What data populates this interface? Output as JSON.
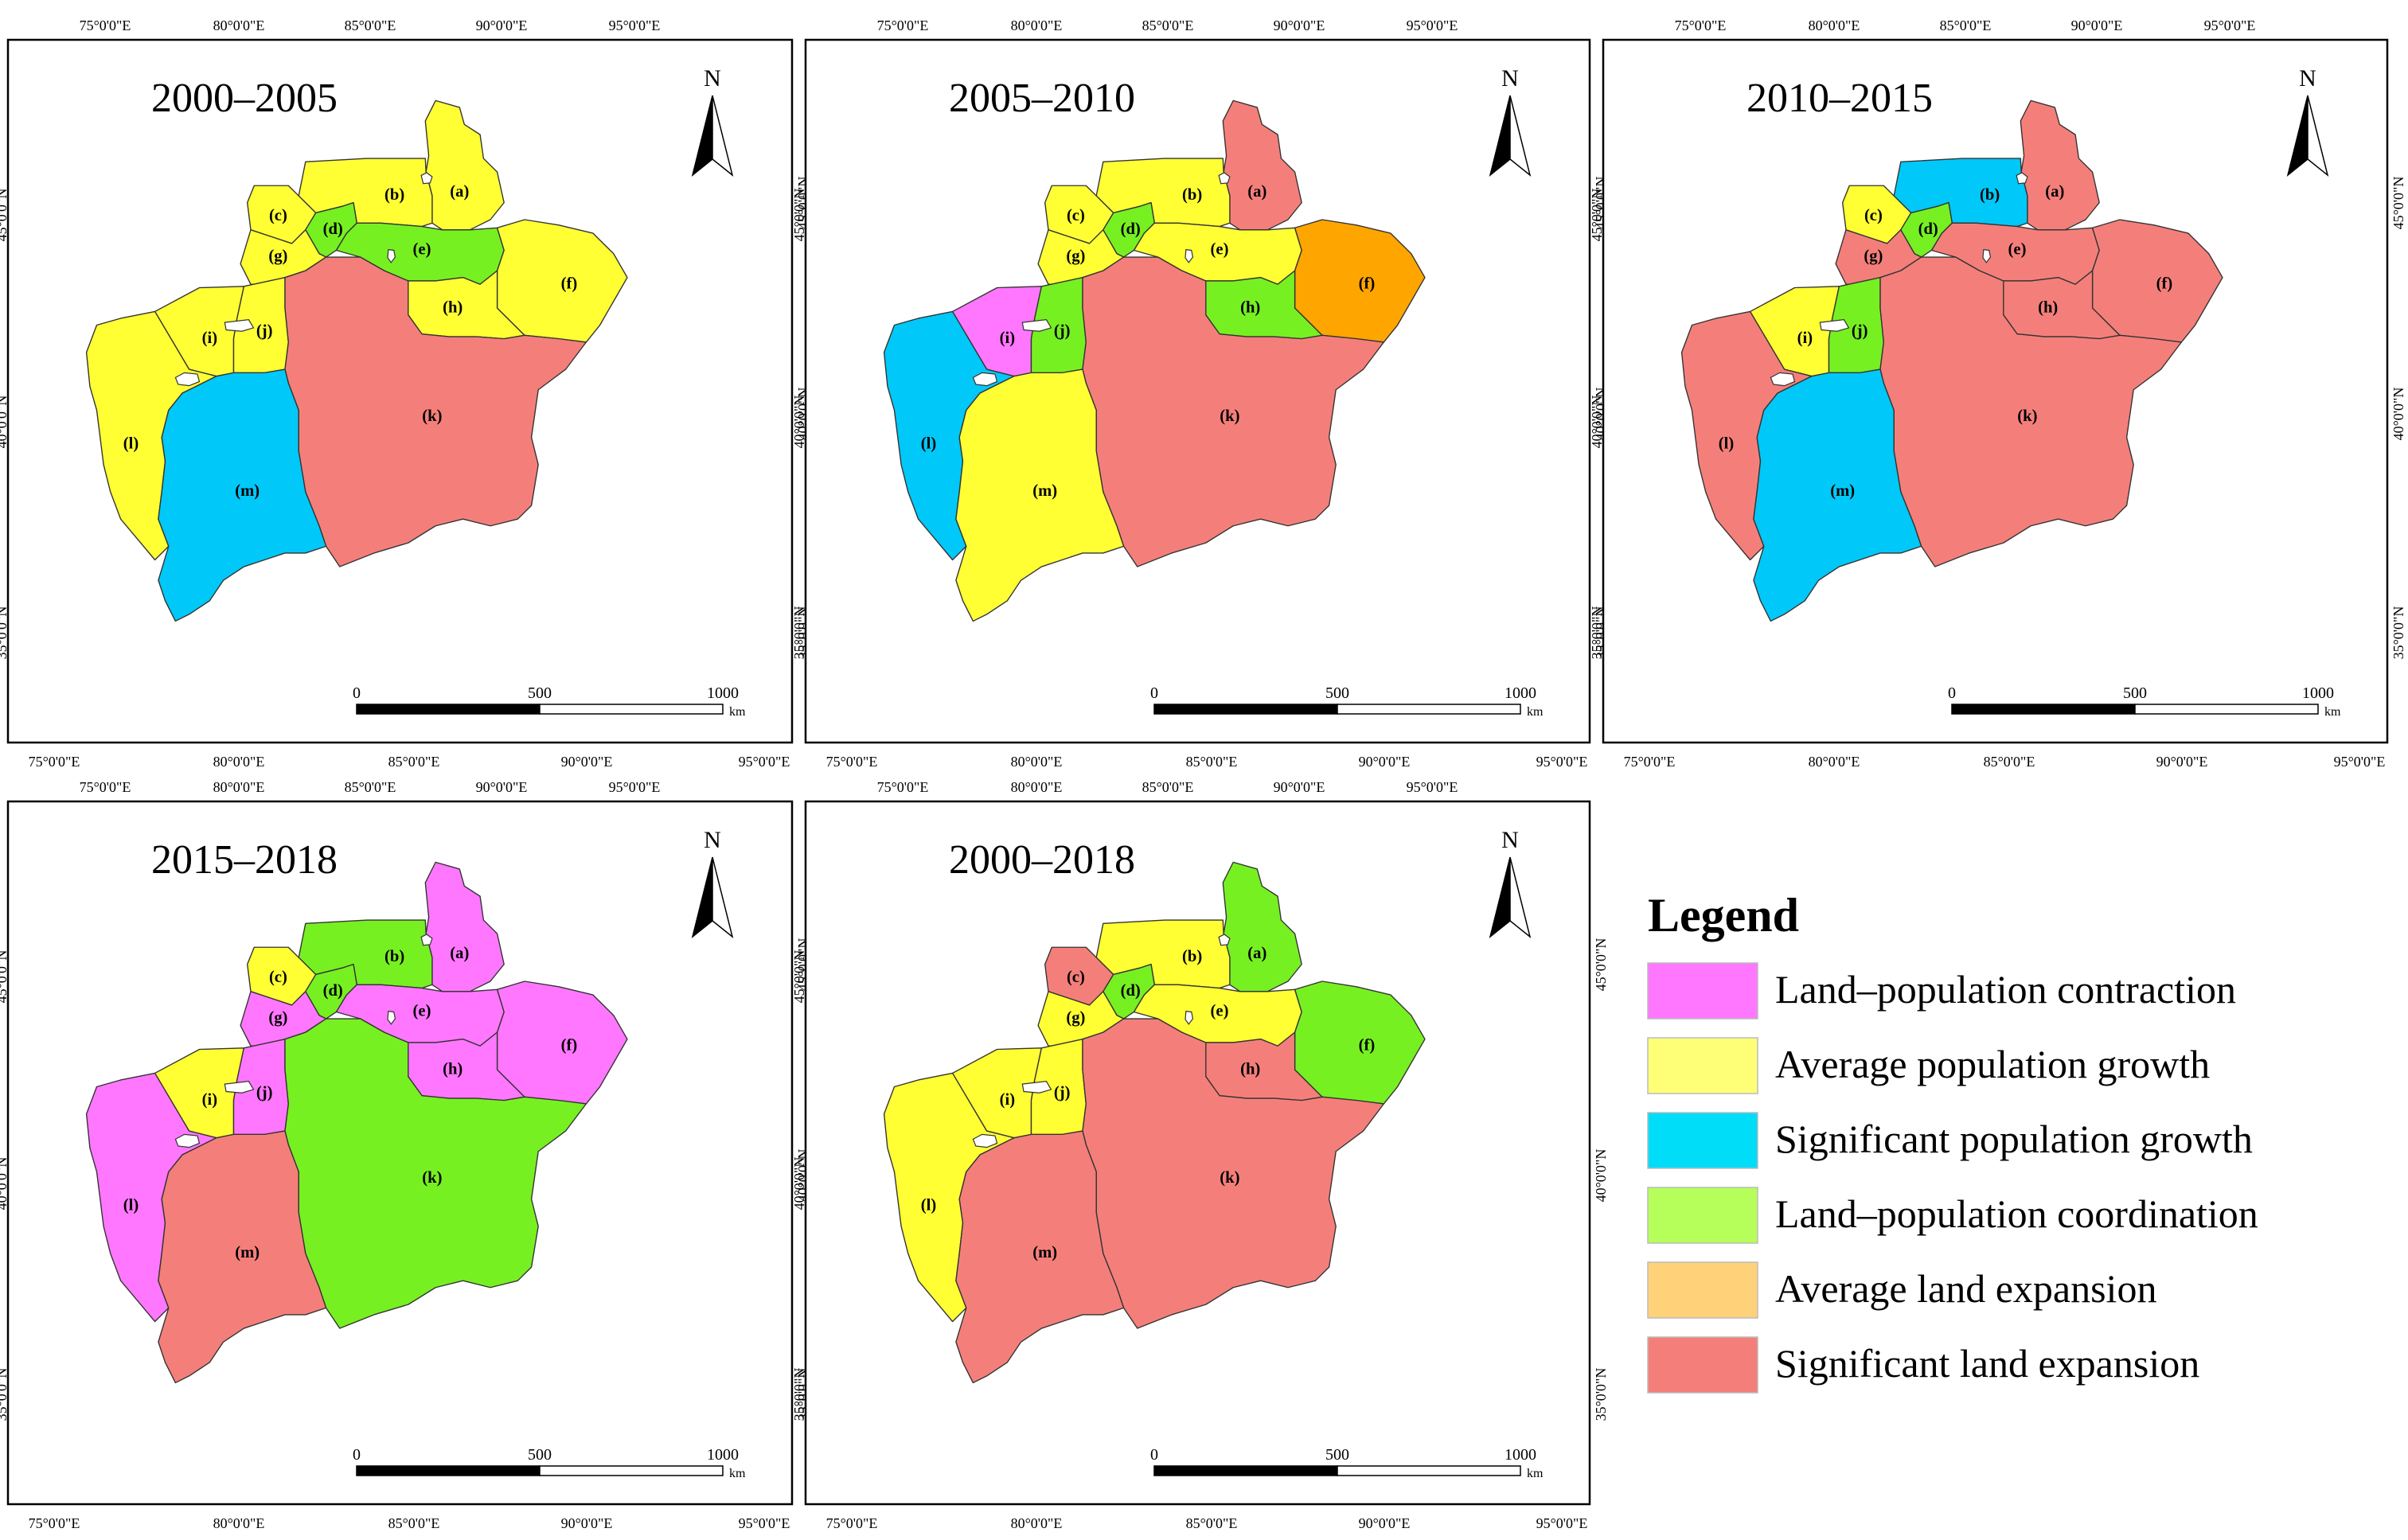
{
  "colors": {
    "land_population_contraction": "#ff77ff",
    "average_population_growth": "#ffff33",
    "significant_population_growth": "#00c8f8",
    "land_population_coordination": "#77f022",
    "average_land_expansion": "#ffa500",
    "significant_land_expansion": "#f47f7a",
    "legend_average_population_growth": "#ffff77",
    "legend_significant_population_growth": "#00ddf8",
    "legend_land_population_coordination": "#b6ff5a",
    "legend_average_land_expansion": "#ffd27a"
  },
  "legend": {
    "title": "Legend",
    "items": [
      {
        "key": "land_population_contraction",
        "label": "Land–population contraction"
      },
      {
        "key": "average_population_growth",
        "label": "Average population growth"
      },
      {
        "key": "significant_population_growth",
        "label": "Significant population growth"
      },
      {
        "key": "land_population_coordination",
        "label": "Land–population coordination"
      },
      {
        "key": "average_land_expansion",
        "label": "Average land expansion"
      },
      {
        "key": "significant_land_expansion",
        "label": "Significant land expansion"
      }
    ]
  },
  "north_arrow": "N",
  "scale_bar": {
    "ticks": [
      "0",
      "500",
      "1000"
    ],
    "unit": "km"
  },
  "axis_labels": {
    "top": [
      "75°0'0\"E",
      "80°0'0\"E",
      "85°0'0\"E",
      "90°0'0\"E",
      "95°0'0\"E"
    ],
    "bottom": [
      "75°0'0\"E",
      "80°0'0\"E",
      "85°0'0\"E",
      "90°0'0\"E",
      "95°0'0\"E"
    ],
    "side": [
      "45°0'0\"N",
      "40°0'0\"N",
      "35°0'0\"N"
    ]
  },
  "maps": [
    {
      "title": "2000–2005",
      "regions": {
        "a": "average_population_growth",
        "b": "average_population_growth",
        "c": "average_population_growth",
        "d": "land_population_coordination",
        "e": "land_population_coordination",
        "f": "average_population_growth",
        "g": "average_population_growth",
        "h": "average_population_growth",
        "i": "average_population_growth",
        "j": "average_population_growth",
        "k": "significant_land_expansion",
        "l": "average_population_growth",
        "m": "significant_population_growth"
      }
    },
    {
      "title": "2005–2010",
      "regions": {
        "a": "significant_land_expansion",
        "b": "average_population_growth",
        "c": "average_population_growth",
        "d": "land_population_coordination",
        "e": "average_population_growth",
        "f": "average_land_expansion",
        "g": "average_population_growth",
        "h": "land_population_coordination",
        "i": "land_population_contraction",
        "j": "land_population_coordination",
        "k": "significant_land_expansion",
        "l": "significant_population_growth",
        "m": "average_population_growth"
      }
    },
    {
      "title": "2010–2015",
      "regions": {
        "a": "significant_land_expansion",
        "b": "significant_population_growth",
        "c": "average_population_growth",
        "d": "land_population_coordination",
        "e": "significant_land_expansion",
        "f": "significant_land_expansion",
        "g": "significant_land_expansion",
        "h": "significant_land_expansion",
        "i": "average_population_growth",
        "j": "land_population_coordination",
        "k": "significant_land_expansion",
        "l": "significant_land_expansion",
        "m": "significant_population_growth"
      }
    },
    {
      "title": "2015–2018",
      "regions": {
        "a": "land_population_contraction",
        "b": "land_population_coordination",
        "c": "average_population_growth",
        "d": "land_population_coordination",
        "e": "land_population_contraction",
        "f": "land_population_contraction",
        "g": "land_population_contraction",
        "h": "land_population_contraction",
        "i": "average_population_growth",
        "j": "land_population_contraction",
        "k": "land_population_coordination",
        "l": "land_population_contraction",
        "m": "significant_land_expansion"
      }
    },
    {
      "title": "2000–2018",
      "regions": {
        "a": "land_population_coordination",
        "b": "average_population_growth",
        "c": "significant_land_expansion",
        "d": "land_population_coordination",
        "e": "average_population_growth",
        "f": "land_population_coordination",
        "g": "average_population_growth",
        "h": "significant_land_expansion",
        "i": "average_population_growth",
        "j": "average_population_growth",
        "k": "significant_land_expansion",
        "l": "average_population_growth",
        "m": "significant_land_expansion"
      }
    }
  ]
}
